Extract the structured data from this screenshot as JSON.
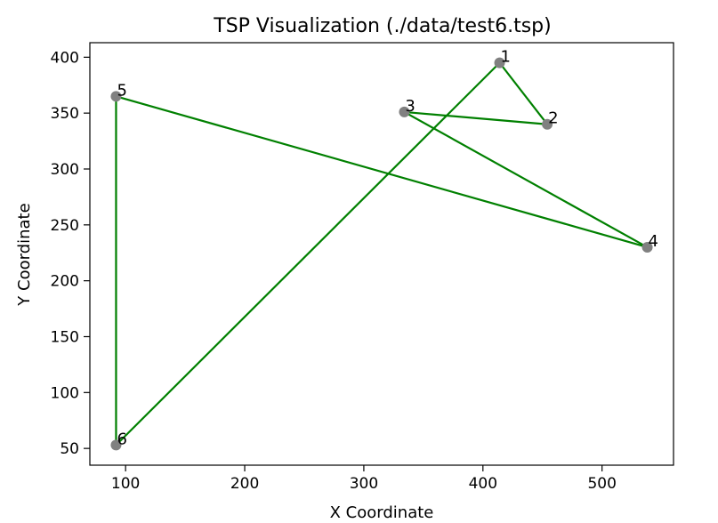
{
  "chart_data": {
    "type": "scatter",
    "title": "TSP Visualization (./data/test6.tsp)",
    "xlabel": "X Coordinate",
    "ylabel": "Y Coordinate",
    "xlim": [
      70,
      560
    ],
    "ylim": [
      35,
      413
    ],
    "xticks": [
      100,
      200,
      300,
      400,
      500
    ],
    "yticks": [
      50,
      100,
      150,
      200,
      250,
      300,
      350,
      400
    ],
    "grid": false,
    "points": [
      {
        "label": "1",
        "x": 414,
        "y": 395
      },
      {
        "label": "2",
        "x": 454,
        "y": 340
      },
      {
        "label": "3",
        "x": 334,
        "y": 351
      },
      {
        "label": "4",
        "x": 538,
        "y": 230
      },
      {
        "label": "5",
        "x": 92,
        "y": 365
      },
      {
        "label": "6",
        "x": 92,
        "y": 53
      }
    ],
    "tour": [
      "1",
      "2",
      "3",
      "4",
      "5",
      "6",
      "1"
    ],
    "colors": {
      "point": "#808080",
      "route": "#008000",
      "axes": "#000000"
    }
  }
}
